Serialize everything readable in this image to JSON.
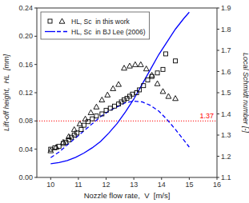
{
  "chart_data": {
    "type": "scatter",
    "x_label": "Nozzle flow rate,  V  [m/s]",
    "y_label": "Lift-off height,  HL  [mm]",
    "y2_label": "Local Schmidt number [-]",
    "xlim": [
      9.5,
      16
    ],
    "ylim": [
      0.0,
      0.24
    ],
    "y2lim": [
      1.1,
      1.9
    ],
    "xticks": [
      10,
      11,
      12,
      13,
      14,
      15,
      16
    ],
    "yticks": [
      {
        "value": 0.0,
        "label": "0.00"
      },
      {
        "value": 0.04,
        "label": "0.04"
      },
      {
        "value": 0.08,
        "label": "0.08"
      },
      {
        "value": 0.12,
        "label": "0.12"
      },
      {
        "value": 0.16,
        "label": "0.16"
      },
      {
        "value": 0.2,
        "label": "0.20"
      },
      {
        "value": 0.24,
        "label": "0.24"
      }
    ],
    "y2ticks": [
      1.1,
      1.2,
      1.3,
      1.4,
      1.5,
      1.6,
      1.7,
      1.8,
      1.9
    ],
    "grid": false,
    "legend": "upper left",
    "series": [
      {
        "name": "HL, Sc  in this work",
        "type": "scatter",
        "marker": "square",
        "color": "black",
        "x": [
          10.0,
          10.15,
          10.3,
          10.45,
          10.55,
          10.65,
          10.75,
          10.85,
          10.95,
          11.1,
          11.2,
          11.35,
          11.5,
          11.65,
          11.85,
          12.0,
          12.15,
          12.3,
          12.45,
          12.55,
          12.65,
          12.75,
          12.85,
          12.95,
          13.1,
          13.2,
          13.35,
          13.5,
          13.65,
          13.85,
          14.05,
          14.15,
          14.5
        ],
        "values": [
          0.04,
          0.042,
          0.044,
          0.048,
          0.05,
          0.053,
          0.057,
          0.06,
          0.063,
          0.068,
          0.074,
          0.079,
          0.083,
          0.087,
          0.09,
          0.095,
          0.098,
          0.101,
          0.104,
          0.107,
          0.11,
          0.112,
          0.115,
          0.118,
          0.12,
          0.124,
          0.13,
          0.138,
          0.143,
          0.148,
          0.153,
          0.175,
          0.165
        ]
      },
      {
        "type": "scatter",
        "marker": "triangle",
        "color": "black",
        "x": [
          10.0,
          10.2,
          10.45,
          10.65,
          10.85,
          11.05,
          11.25,
          11.45,
          11.65,
          11.85,
          12.05,
          12.25,
          12.45,
          12.65,
          12.85,
          13.05,
          13.25,
          13.45,
          13.65,
          13.85,
          14.05,
          14.25,
          14.5
        ],
        "values": [
          0.038,
          0.043,
          0.05,
          0.058,
          0.068,
          0.076,
          0.083,
          0.092,
          0.1,
          0.11,
          0.117,
          0.126,
          0.132,
          0.155,
          0.158,
          0.16,
          0.16,
          0.154,
          0.145,
          0.133,
          0.122,
          0.115,
          0.112
        ]
      },
      {
        "name": "HL, Sc  in BJ Lee (2006)",
        "type": "line",
        "line_style": "solid",
        "color": "blue",
        "axis": "y2",
        "x": [
          10.0,
          10.3,
          10.6,
          10.9,
          11.2,
          11.5,
          11.8,
          12.1,
          12.4,
          12.7,
          13.0,
          13.3,
          13.6,
          13.9,
          14.2,
          14.5,
          14.8,
          15.0
        ],
        "values": [
          1.165,
          1.17,
          1.18,
          1.195,
          1.215,
          1.24,
          1.27,
          1.31,
          1.355,
          1.41,
          1.47,
          1.54,
          1.61,
          1.68,
          1.74,
          1.8,
          1.85,
          1.88
        ]
      },
      {
        "type": "line",
        "line_style": "dashed",
        "color": "blue",
        "x": [
          10.0,
          10.3,
          10.6,
          10.9,
          11.2,
          11.5,
          11.8,
          12.1,
          12.4,
          12.7,
          13.0,
          13.3,
          13.6,
          13.9,
          14.2,
          14.5,
          14.8,
          15.0
        ],
        "values": [
          0.028,
          0.036,
          0.046,
          0.056,
          0.066,
          0.076,
          0.086,
          0.094,
          0.1,
          0.106,
          0.108,
          0.107,
          0.102,
          0.094,
          0.082,
          0.068,
          0.053,
          0.043
        ]
      }
    ],
    "annotations": [
      {
        "type": "hline",
        "y": 0.08,
        "text": "1.37",
        "color": "red",
        "line_style": "dotted"
      }
    ]
  }
}
